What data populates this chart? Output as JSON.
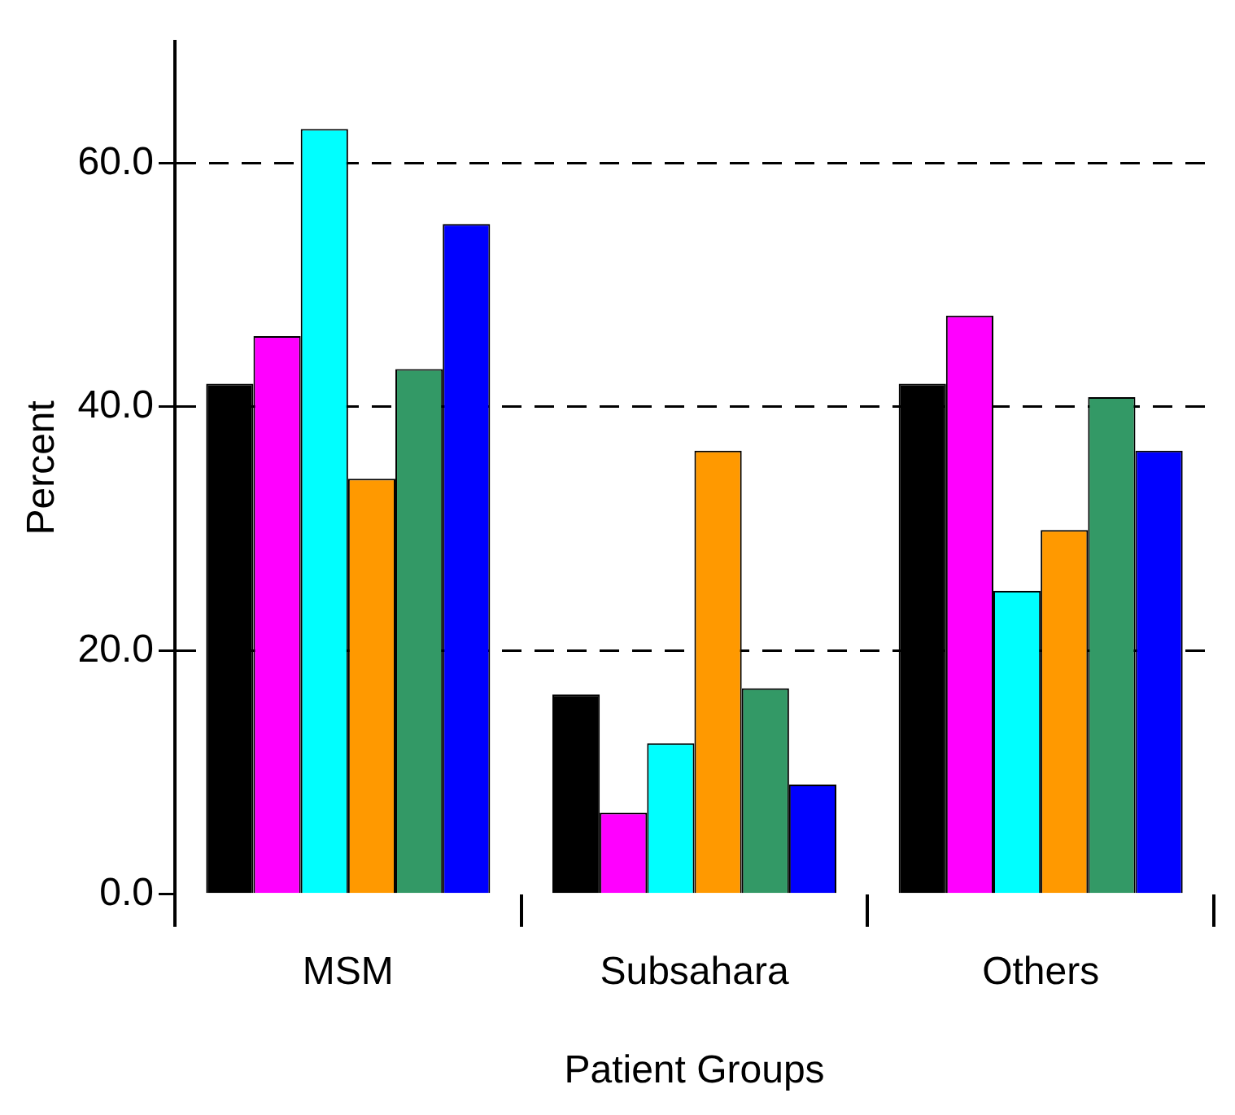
{
  "chart_data": {
    "type": "bar",
    "xlabel": "Patient Groups",
    "ylabel": "Percent",
    "categories": [
      "MSM",
      "Subsahara",
      "Others"
    ],
    "series": [
      {
        "color": "#000000",
        "values": [
          41.9,
          16.4,
          41.9
        ]
      },
      {
        "color": "#ff00ff",
        "values": [
          45.8,
          6.7,
          47.5
        ]
      },
      {
        "color": "#00ffff",
        "values": [
          62.8,
          12.4,
          24.9
        ]
      },
      {
        "color": "#ff9900",
        "values": [
          34.1,
          36.4,
          29.9
        ]
      },
      {
        "color": "#339966",
        "values": [
          43.1,
          16.9,
          40.8
        ]
      },
      {
        "color": "#0000ff",
        "values": [
          55.0,
          9.0,
          36.4
        ]
      }
    ],
    "ylim": [
      0,
      70
    ],
    "yticks": [
      {
        "value": 0,
        "label": "0.0"
      },
      {
        "value": 20,
        "label": "20.0"
      },
      {
        "value": 40,
        "label": "40.0"
      },
      {
        "value": 60,
        "label": "60.0"
      }
    ],
    "grid": "y",
    "line_style": "dashed",
    "legend": false
  }
}
